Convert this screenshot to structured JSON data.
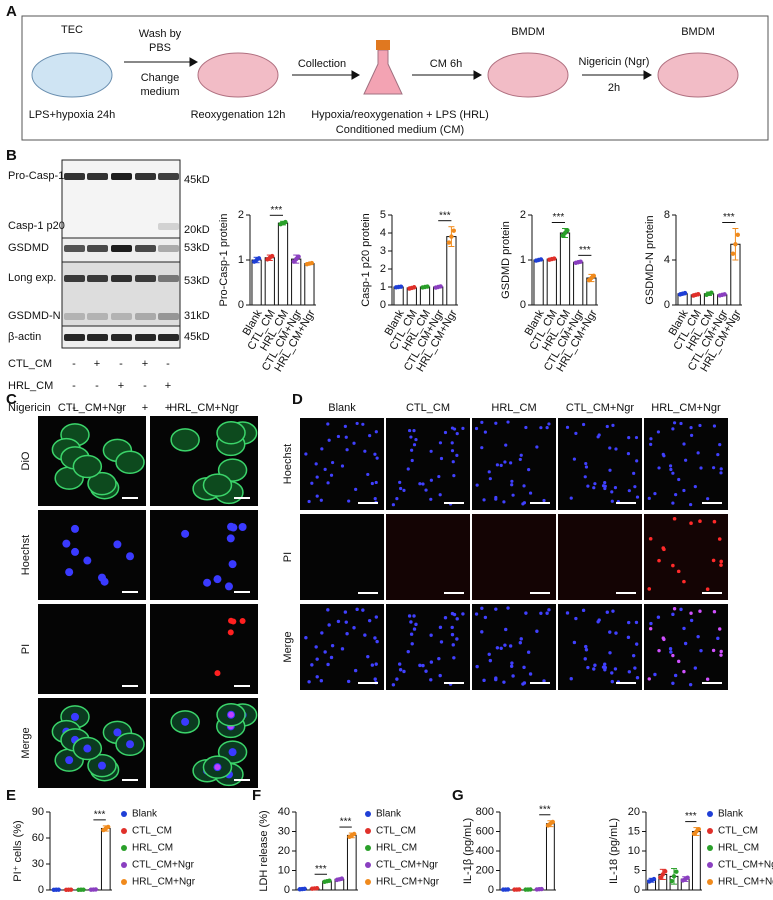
{
  "panel_a": {
    "label": "A",
    "tec": "TEC",
    "step1": "LPS+hypoxia 24h",
    "wash": [
      "Wash by",
      "PBS"
    ],
    "change": [
      "Change",
      "medium"
    ],
    "step2": "Reoxygenation 12h",
    "collection": "Collection",
    "cm": "CM 6h",
    "hrl": "Hypoxia/reoxygenation + LPS (HRL)",
    "conditioned": "Conditioned medium (CM)",
    "bmdm1": "BMDM",
    "ngr": [
      "Nigericin (Ngr)",
      "2h"
    ],
    "bmdm2": "BMDM"
  },
  "panel_b": {
    "label": "B",
    "blot_labels": [
      "Pro-Casp-1",
      "Casp-1 p20",
      "GSDMD",
      "Long exp.",
      "GSDMD-N",
      "β-actin"
    ],
    "kd_labels": [
      "45kD",
      "20kD",
      "53kD",
      "53kD",
      "31kD",
      "45kD"
    ],
    "conditions": [
      {
        "label": "CTL_CM",
        "signs": [
          "-",
          "+",
          "-",
          "+",
          "-"
        ]
      },
      {
        "label": "HRL_CM",
        "signs": [
          "-",
          "-",
          "+",
          "-",
          "+"
        ]
      },
      {
        "label": "Nigericin",
        "signs": [
          "-",
          "-",
          "-",
          "+",
          "+"
        ]
      }
    ]
  },
  "panel_c": {
    "label": "C",
    "columns": [
      "CTL_CM+Ngr",
      "HRL_CM+Ngr"
    ],
    "rows": [
      "DiO",
      "Hoechst",
      "PI",
      "Merge"
    ]
  },
  "panel_d": {
    "label": "D",
    "columns": [
      "Blank",
      "CTL_CM",
      "HRL_CM",
      "CTL_CM+Ngr",
      "HRL_CM+Ngr"
    ],
    "rows": [
      "Hoechst",
      "PI",
      "Merge"
    ]
  },
  "bottom_panels": {
    "labels": [
      "E",
      "F",
      "G"
    ]
  },
  "chart_data": [
    {
      "type": "bar",
      "y_label": "Pro-Casp-1 protein",
      "categories": [
        "Blank",
        "CTL_CM",
        "HRL_CM",
        "CTL_CM+Ngr",
        "HRL_CM+Ngr"
      ],
      "colors": [
        "#1f3fd6",
        "#e0302a",
        "#2aa02a",
        "#8a3fc0",
        "#f08a1c"
      ],
      "values": [
        1.0,
        1.05,
        1.82,
        1.02,
        0.92
      ],
      "errors": [
        0.06,
        0.06,
        0.04,
        0.09,
        0.02
      ],
      "ylim": [
        0,
        2
      ],
      "yticks": [
        0,
        1,
        2
      ],
      "annotations": [
        "***"
      ],
      "legend": false
    },
    {
      "type": "bar",
      "y_label": "Casp-1 p20 protein",
      "categories": [
        "Blank",
        "CTL_CM",
        "HRL_CM",
        "CTL_CM+Ngr",
        "HRL_CM+Ngr"
      ],
      "colors": [
        "#1f3fd6",
        "#e0302a",
        "#2aa02a",
        "#8a3fc0",
        "#f08a1c"
      ],
      "values": [
        1.0,
        0.95,
        1.0,
        1.0,
        3.8
      ],
      "errors": [
        0.03,
        0.06,
        0.04,
        0.05,
        0.55
      ],
      "ylim": [
        0,
        5
      ],
      "yticks": [
        0,
        1,
        2,
        3,
        4,
        5
      ],
      "annotations": [
        "***"
      ],
      "legend": false
    },
    {
      "type": "bar",
      "y_label": "GSDMD protein",
      "categories": [
        "Blank",
        "CTL_CM",
        "HRL_CM",
        "CTL_CM+Ngr",
        "HRL_CM+Ngr"
      ],
      "colors": [
        "#1f3fd6",
        "#e0302a",
        "#2aa02a",
        "#8a3fc0",
        "#f08a1c"
      ],
      "values": [
        1.0,
        1.02,
        1.6,
        0.95,
        0.6
      ],
      "errors": [
        0.02,
        0.02,
        0.1,
        0.02,
        0.08
      ],
      "ylim": [
        0,
        2
      ],
      "yticks": [
        0,
        1,
        2
      ],
      "annotations": [
        "***",
        "***"
      ],
      "legend": false
    },
    {
      "type": "bar",
      "y_label": "GSDMD-N protein",
      "categories": [
        "Blank",
        "CTL_CM",
        "HRL_CM",
        "CTL_CM+Ngr",
        "HRL_CM+Ngr"
      ],
      "colors": [
        "#1f3fd6",
        "#e0302a",
        "#2aa02a",
        "#8a3fc0",
        "#f08a1c"
      ],
      "values": [
        1.0,
        0.9,
        1.0,
        0.9,
        5.4
      ],
      "errors": [
        0.1,
        0.1,
        0.15,
        0.08,
        1.4
      ],
      "ylim": [
        0,
        8
      ],
      "yticks": [
        0,
        4,
        8
      ],
      "annotations": [
        "***"
      ],
      "legend": false
    },
    {
      "type": "bar",
      "y_label": "PI⁺ cells (%)",
      "categories": [
        "Blank",
        "CTL_CM",
        "HRL_CM",
        "CTL_CM+Ngr",
        "HRL_CM+Ngr"
      ],
      "colors": [
        "#1f3fd6",
        "#e0302a",
        "#2aa02a",
        "#8a3fc0",
        "#f08a1c"
      ],
      "values": [
        0.3,
        0.3,
        0.3,
        0.5,
        71
      ],
      "errors": [
        0.1,
        0.1,
        0.1,
        0.2,
        3
      ],
      "ylim": [
        0,
        90
      ],
      "yticks": [
        0,
        30,
        60,
        90
      ],
      "annotations": [
        "***"
      ],
      "legend": true
    },
    {
      "type": "bar",
      "y_label": "LDH release (%)",
      "categories": [
        "Blank",
        "CTL_CM",
        "HRL_CM",
        "CTL_CM+Ngr",
        "HRL_CM+Ngr"
      ],
      "colors": [
        "#1f3fd6",
        "#e0302a",
        "#2aa02a",
        "#8a3fc0",
        "#f08a1c"
      ],
      "values": [
        0.5,
        0.8,
        4.5,
        5.5,
        28
      ],
      "errors": [
        0.2,
        0.2,
        0.5,
        0.6,
        1.2
      ],
      "ylim": [
        0,
        40
      ],
      "yticks": [
        0,
        10,
        20,
        30,
        40
      ],
      "annotations": [
        "***",
        "***"
      ],
      "legend": true
    },
    {
      "type": "bar",
      "y_label": "IL-1β (pg/mL)",
      "categories": [
        "Blank",
        "CTL_CM",
        "HRL_CM",
        "CTL_CM+Ngr",
        "HRL_CM+Ngr"
      ],
      "colors": [
        "#1f3fd6",
        "#e0302a",
        "#2aa02a",
        "#8a3fc0",
        "#f08a1c"
      ],
      "values": [
        5,
        5,
        5,
        8,
        680
      ],
      "errors": [
        2,
        2,
        2,
        3,
        30
      ],
      "ylim": [
        0,
        800
      ],
      "yticks": [
        0,
        200,
        400,
        600,
        800
      ],
      "annotations": [
        "***"
      ],
      "legend": false
    },
    {
      "type": "bar",
      "y_label": "IL-18 (pg/mL)",
      "categories": [
        "Blank",
        "CTL_CM",
        "HRL_CM",
        "CTL_CM+Ngr",
        "HRL_CM+Ngr"
      ],
      "colors": [
        "#1f3fd6",
        "#e0302a",
        "#2aa02a",
        "#8a3fc0",
        "#f08a1c"
      ],
      "values": [
        2.5,
        4,
        3.5,
        2.8,
        15
      ],
      "errors": [
        0.5,
        1.3,
        2,
        0.6,
        1
      ],
      "ylim": [
        0,
        20
      ],
      "yticks": [
        0,
        5,
        10,
        15,
        20
      ],
      "annotations": [
        "***"
      ],
      "legend": true
    }
  ]
}
